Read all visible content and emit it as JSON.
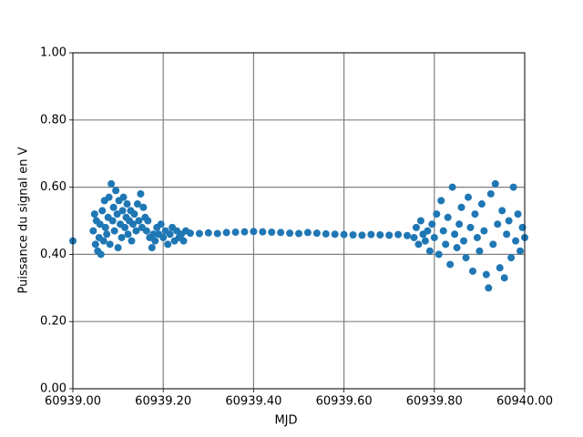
{
  "chart_data": {
    "type": "scatter",
    "xlabel": "MJD",
    "ylabel": "Puissance du signal en V",
    "xlim": [
      60939.0,
      60940.0
    ],
    "ylim": [
      0,
      1
    ],
    "xticks": [
      {
        "value": 60939.0,
        "label": "60939.00"
      },
      {
        "value": 60939.2,
        "label": "60939.20"
      },
      {
        "value": 60939.4,
        "label": "60939.40"
      },
      {
        "value": 60939.6,
        "label": "60939.60"
      },
      {
        "value": 60939.8,
        "label": "60939.80"
      },
      {
        "value": 60940.0,
        "label": "60940.00"
      }
    ],
    "yticks": [
      {
        "value": 0,
        "label": "0.00"
      },
      {
        "value": 0.2,
        "label": "0.20"
      },
      {
        "value": 0.4,
        "label": "0.40"
      },
      {
        "value": 0.6,
        "label": "0.60"
      },
      {
        "value": 0.8,
        "label": "0.80"
      },
      {
        "value": 1,
        "label": "1.00"
      }
    ],
    "grid": true,
    "color": "#1f77b4",
    "x": [
      60939.0,
      60939.045,
      60939.048,
      60939.05,
      60939.052,
      60939.055,
      60939.058,
      60939.06,
      60939.062,
      60939.065,
      60939.068,
      60939.07,
      60939.072,
      60939.075,
      60939.078,
      60939.08,
      60939.082,
      60939.085,
      60939.088,
      60939.09,
      60939.092,
      60939.095,
      60939.098,
      60939.1,
      60939.102,
      60939.105,
      60939.108,
      60939.11,
      60939.112,
      60939.115,
      60939.118,
      60939.12,
      60939.122,
      60939.125,
      60939.128,
      60939.13,
      60939.133,
      60939.136,
      60939.14,
      60939.143,
      60939.146,
      60939.15,
      60939.153,
      60939.156,
      60939.16,
      60939.163,
      60939.166,
      60939.17,
      60939.175,
      60939.178,
      60939.182,
      60939.186,
      60939.19,
      60939.195,
      60939.2,
      60939.205,
      60939.21,
      60939.215,
      60939.22,
      60939.225,
      60939.23,
      60939.235,
      60939.24,
      60939.245,
      60939.25,
      60939.26,
      60939.28,
      60939.3,
      60939.32,
      60939.34,
      60939.36,
      60939.38,
      60939.4,
      60939.42,
      60939.44,
      60939.46,
      60939.48,
      60939.5,
      60939.52,
      60939.54,
      60939.56,
      60939.58,
      60939.6,
      60939.62,
      60939.64,
      60939.66,
      60939.68,
      60939.7,
      60939.72,
      60939.74,
      60939.755,
      60939.76,
      60939.765,
      60939.77,
      60939.775,
      60939.78,
      60939.785,
      60939.79,
      60939.795,
      60939.8,
      60939.805,
      60939.81,
      60939.815,
      60939.82,
      60939.825,
      60939.83,
      60939.835,
      60939.84,
      60939.845,
      60939.85,
      60939.855,
      60939.86,
      60939.865,
      60939.87,
      60939.875,
      60939.88,
      60939.885,
      60939.89,
      60939.895,
      60939.9,
      60939.905,
      60939.91,
      60939.915,
      60939.92,
      60939.925,
      60939.93,
      60939.935,
      60939.94,
      60939.945,
      60939.95,
      60939.955,
      60939.96,
      60939.965,
      60939.97,
      60939.975,
      60939.98,
      60939.985,
      60939.99,
      60939.995,
      60940.0
    ],
    "values": [
      0.44,
      0.47,
      0.52,
      0.43,
      0.5,
      0.41,
      0.45,
      0.49,
      0.4,
      0.53,
      0.44,
      0.56,
      0.48,
      0.46,
      0.51,
      0.57,
      0.43,
      0.61,
      0.5,
      0.54,
      0.47,
      0.59,
      0.52,
      0.42,
      0.56,
      0.49,
      0.45,
      0.53,
      0.57,
      0.48,
      0.51,
      0.55,
      0.46,
      0.5,
      0.53,
      0.44,
      0.49,
      0.52,
      0.47,
      0.55,
      0.5,
      0.58,
      0.48,
      0.54,
      0.51,
      0.47,
      0.5,
      0.45,
      0.42,
      0.46,
      0.44,
      0.48,
      0.46,
      0.49,
      0.45,
      0.47,
      0.43,
      0.46,
      0.48,
      0.44,
      0.47,
      0.45,
      0.46,
      0.44,
      0.47,
      0.463,
      0.462,
      0.464,
      0.462,
      0.465,
      0.466,
      0.467,
      0.468,
      0.467,
      0.466,
      0.465,
      0.463,
      0.462,
      0.465,
      0.463,
      0.461,
      0.46,
      0.459,
      0.458,
      0.457,
      0.459,
      0.458,
      0.457,
      0.459,
      0.456,
      0.45,
      0.48,
      0.43,
      0.5,
      0.46,
      0.44,
      0.47,
      0.41,
      0.49,
      0.45,
      0.52,
      0.4,
      0.56,
      0.47,
      0.43,
      0.51,
      0.37,
      0.6,
      0.46,
      0.42,
      0.49,
      0.54,
      0.44,
      0.39,
      0.57,
      0.48,
      0.35,
      0.52,
      0.45,
      0.41,
      0.55,
      0.47,
      0.34,
      0.3,
      0.58,
      0.43,
      0.61,
      0.49,
      0.36,
      0.53,
      0.33,
      0.46,
      0.5,
      0.39,
      0.6,
      0.44,
      0.52,
      0.41,
      0.48,
      0.45
    ]
  }
}
